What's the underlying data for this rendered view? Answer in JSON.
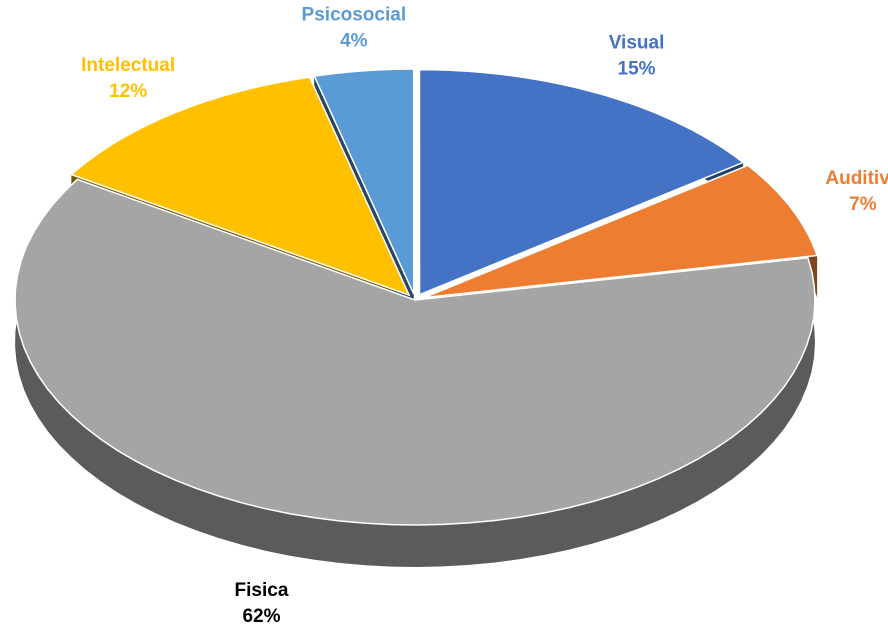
{
  "chart_data": {
    "type": "pie3d",
    "categories": [
      "Visual",
      "Auditiva",
      "Fisica",
      "Intelectual",
      "Psicosocial"
    ],
    "values": [
      15,
      7,
      62,
      12,
      4
    ],
    "value_labels": [
      "15%",
      "7%",
      "62%",
      "12%",
      "4%"
    ],
    "colors": [
      "#4472c4",
      "#ed7d31",
      "#a5a5a5",
      "#ffc000",
      "#5b9bd5"
    ],
    "label_colors": [
      "#4472c4",
      "#ed7d31",
      "#000000",
      "#ffc000",
      "#5b9bd5"
    ]
  }
}
